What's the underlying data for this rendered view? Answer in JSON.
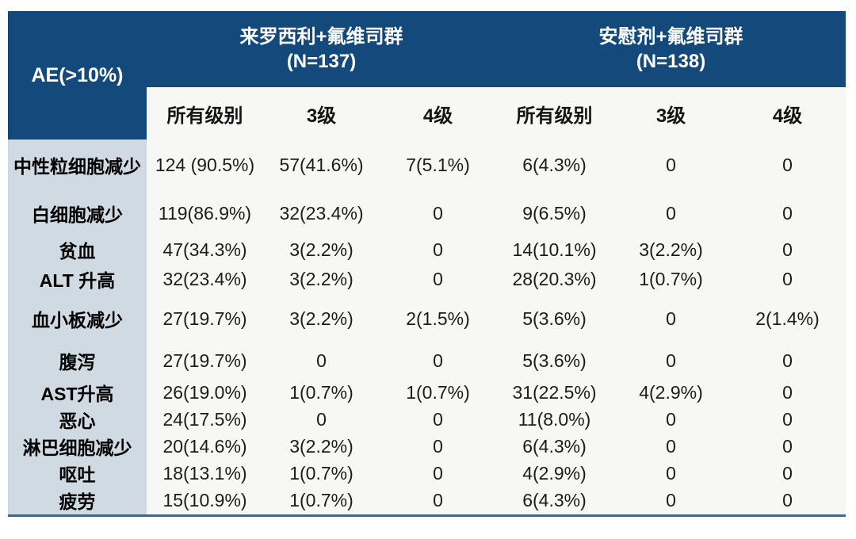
{
  "header": {
    "corner": "AE(>10%)",
    "groups": [
      {
        "name": "来罗西利+氟维司群",
        "n": "(N=137)"
      },
      {
        "name": "安慰剂+氟维司群",
        "n": "(N=138)"
      }
    ],
    "subcolumns": [
      "所有级别",
      "3级",
      "4级",
      "所有级别",
      "3级",
      "4级"
    ]
  },
  "rows": [
    {
      "label": "中性粒细胞减少",
      "values": [
        "124 (90.5%)",
        "57(41.6%)",
        "7(5.1%)",
        "6(4.3%)",
        "0",
        "0"
      ]
    },
    {
      "label": "白细胞减少",
      "values": [
        "119(86.9%)",
        "32(23.4%)",
        "0",
        "9(6.5%)",
        "0",
        "0"
      ]
    },
    {
      "label": "贫血",
      "values": [
        "47(34.3%)",
        "3(2.2%)",
        "0",
        "14(10.1%)",
        "3(2.2%)",
        "0"
      ]
    },
    {
      "label": "ALT 升高",
      "values": [
        "32(23.4%)",
        "3(2.2%)",
        "0",
        "28(20.3%)",
        "1(0.7%)",
        "0"
      ]
    },
    {
      "label": "血小板减少",
      "values": [
        "27(19.7%)",
        "3(2.2%)",
        "2(1.5%)",
        "5(3.6%)",
        "0",
        "2(1.4%)"
      ]
    },
    {
      "label": "腹泻",
      "values": [
        "27(19.7%)",
        "0",
        "0",
        "5(3.6%)",
        "0",
        "0"
      ]
    },
    {
      "label": "AST升高",
      "values": [
        "26(19.0%)",
        "1(0.7%)",
        "1(0.7%)",
        "31(22.5%)",
        "4(2.9%)",
        "0"
      ]
    },
    {
      "label": "恶心",
      "values": [
        "24(17.5%)",
        "0",
        "0",
        "11(8.0%)",
        "0",
        "0"
      ]
    },
    {
      "label": "淋巴细胞减少",
      "values": [
        "20(14.6%)",
        "3(2.2%)",
        "0",
        "6(4.3%)",
        "0",
        "0"
      ]
    },
    {
      "label": "呕吐",
      "values": [
        "18(13.1%)",
        "1(0.7%)",
        "0",
        "4(2.9%)",
        "0",
        "0"
      ]
    },
    {
      "label": "疲劳",
      "values": [
        "15(10.9%)",
        "1(0.7%)",
        "0",
        "6(4.3%)",
        "0",
        "0"
      ]
    }
  ],
  "colors": {
    "header_bg": "#144A7B",
    "label_col_bg": "#CFDAE3",
    "body_bg": "#F7F7F5",
    "bottom_rule": "#2A6CA3"
  }
}
